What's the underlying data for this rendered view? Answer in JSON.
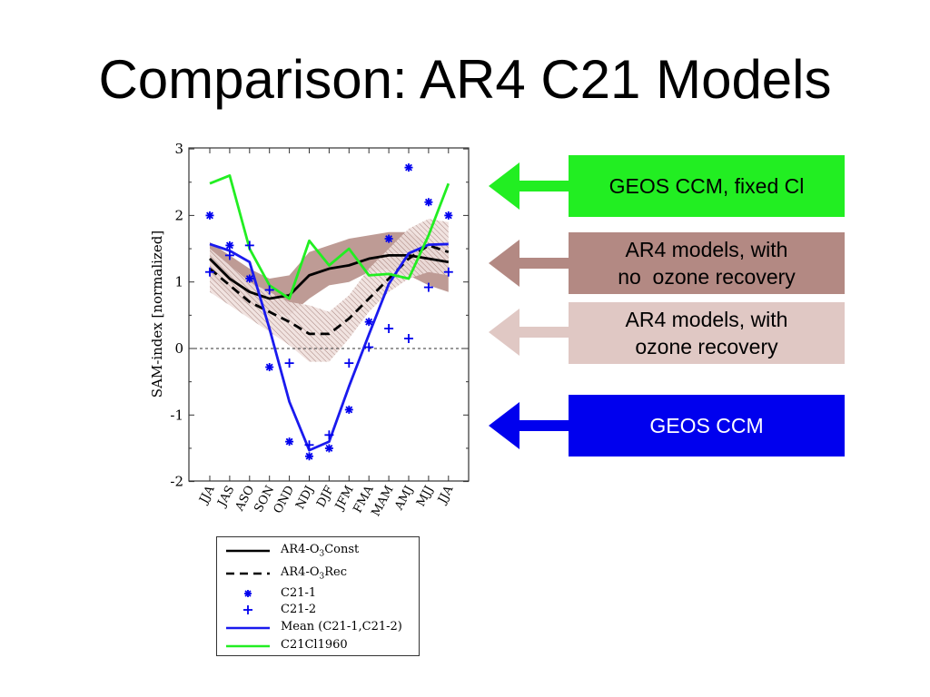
{
  "slide": {
    "title": "Comparison: AR4 C21 Models"
  },
  "callouts": {
    "fixed_cl": {
      "line1": "GEOS CCM, fixed Cl",
      "line2": "",
      "arrow_color": "#22ee22",
      "box_color": "#22ee22"
    },
    "no_recovery": {
      "line1": "AR4 models, with",
      "line2": "no  ozone recovery",
      "arrow_color": "#b38983",
      "box_color": "#b38983"
    },
    "recovery": {
      "line1": "AR4 models, with",
      "line2": "ozone recovery",
      "arrow_color": "#e0c8c4",
      "box_color": "#e0c8c4"
    },
    "geos": {
      "line1": "GEOS CCM",
      "line2": "",
      "arrow_color": "#0000ee",
      "box_color": "#0000ee"
    }
  },
  "legend": {
    "items": [
      {
        "pre": "AR4-O",
        "sub": "3",
        "post": "Const"
      },
      {
        "pre": "AR4-O",
        "sub": "3",
        "post": "Rec"
      },
      {
        "pre": "C21-1",
        "sub": "",
        "post": ""
      },
      {
        "pre": "C21-2",
        "sub": "",
        "post": ""
      },
      {
        "pre": "Mean (C21-1,C21-2)",
        "sub": "",
        "post": ""
      },
      {
        "pre": "C21Cl1960",
        "sub": "",
        "post": ""
      }
    ]
  },
  "chart_data": {
    "type": "line",
    "ylabel": "SAM-index [normalized]",
    "xlabel": "",
    "ylim": [
      -2,
      3
    ],
    "yticks": [
      -2,
      -1,
      0,
      1,
      2,
      3
    ],
    "categories": [
      "JJA",
      "JAS",
      "ASO",
      "SON",
      "OND",
      "NDJ",
      "DJF",
      "JFM",
      "FMA",
      "MAM",
      "AMJ",
      "MJJ",
      "JJA"
    ],
    "reference_line": 0,
    "bands": [
      {
        "name": "AR4 models, with no ozone recovery",
        "color": "#b38983",
        "lower": [
          1.05,
          0.8,
          0.65,
          0.55,
          0.5,
          0.75,
          0.95,
          1.0,
          1.15,
          1.2,
          1.1,
          0.95,
          0.85
        ],
        "upper": [
          1.6,
          1.4,
          1.2,
          1.05,
          1.1,
          1.45,
          1.55,
          1.65,
          1.7,
          1.75,
          1.75,
          1.6,
          1.55
        ]
      },
      {
        "name": "AR4 models, with ozone recovery",
        "color": "#e0c8c4",
        "lower": [
          0.85,
          0.65,
          0.45,
          0.25,
          0.05,
          -0.2,
          -0.2,
          0.15,
          0.55,
          0.85,
          1.05,
          1.15,
          1.1
        ],
        "upper": [
          1.5,
          1.25,
          1.0,
          0.85,
          0.7,
          0.65,
          0.55,
          0.8,
          1.2,
          1.5,
          1.8,
          1.95,
          1.9
        ]
      }
    ],
    "series": [
      {
        "name": "AR4-O3Const",
        "style": "solid",
        "color": "#000000",
        "values": [
          1.35,
          1.05,
          0.85,
          0.75,
          0.8,
          1.1,
          1.2,
          1.25,
          1.35,
          1.4,
          1.4,
          1.35,
          1.3
        ]
      },
      {
        "name": "AR4-O3Rec",
        "style": "dashed",
        "color": "#000000",
        "values": [
          1.2,
          0.95,
          0.7,
          0.55,
          0.4,
          0.22,
          0.22,
          0.45,
          0.75,
          1.05,
          1.35,
          1.55,
          1.45
        ]
      },
      {
        "name": "C21-1",
        "style": "asterisk",
        "color": "#0000ee",
        "values": [
          2.0,
          1.55,
          1.05,
          -0.28,
          -1.4,
          -1.62,
          -1.5,
          -0.92,
          0.4,
          1.65,
          2.72,
          2.2,
          2.0
        ]
      },
      {
        "name": "C21-2",
        "style": "plus",
        "color": "#0000ee",
        "values": [
          1.15,
          1.4,
          1.55,
          0.88,
          -0.22,
          -1.45,
          -1.3,
          -0.22,
          0.02,
          0.3,
          0.15,
          0.92,
          1.15
        ]
      },
      {
        "name": "Mean (C21-1,C21-2)",
        "style": "solid",
        "color": "#1a1aee",
        "values": [
          1.57,
          1.47,
          1.3,
          0.3,
          -0.8,
          -1.53,
          -1.4,
          -0.57,
          0.21,
          0.97,
          1.43,
          1.56,
          1.57
        ]
      },
      {
        "name": "C21Cl1960",
        "style": "solid",
        "color": "#22ee22",
        "values": [
          2.48,
          2.6,
          1.5,
          0.95,
          0.75,
          1.62,
          1.25,
          1.5,
          1.1,
          1.12,
          1.05,
          1.7,
          2.48
        ]
      }
    ]
  }
}
